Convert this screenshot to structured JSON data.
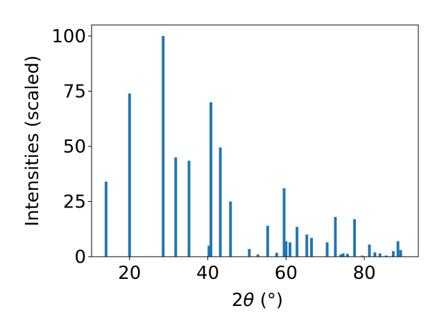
{
  "chart_data": {
    "type": "bar",
    "xlabel_parts": {
      "pre": "2",
      "theta": "θ",
      "post": " (°)"
    },
    "ylabel": "Intensities (scaled)",
    "xlim": [
      10.3,
      93.8
    ],
    "ylim": [
      0,
      105
    ],
    "xticks": [
      20,
      40,
      60,
      80
    ],
    "yticks": [
      0,
      25,
      50,
      75,
      100
    ],
    "bar_color": "#1f77b4",
    "bar_width": 0.7,
    "grid": false,
    "series": [
      {
        "x": [
          14.0,
          20.0,
          28.6,
          31.8,
          35.2,
          40.3,
          40.8,
          43.2,
          45.8,
          50.6,
          52.8,
          55.3,
          57.6,
          59.5,
          60.0,
          61.0,
          62.8,
          65.3,
          66.5,
          70.5,
          72.6,
          74.0,
          74.6,
          75.7,
          77.5,
          79.5,
          81.3,
          82.7,
          84.0,
          85.6,
          87.4,
          88.6,
          89.3
        ],
        "values": [
          34,
          74,
          100,
          45,
          43.5,
          5,
          70,
          49.5,
          25,
          3.5,
          1,
          14,
          1.8,
          31,
          7,
          6.5,
          13.5,
          10,
          8.5,
          6.5,
          18,
          1,
          1.5,
          1.3,
          17,
          0.5,
          5.5,
          2,
          1.5,
          0.5,
          2.5,
          7,
          3
        ]
      }
    ]
  }
}
